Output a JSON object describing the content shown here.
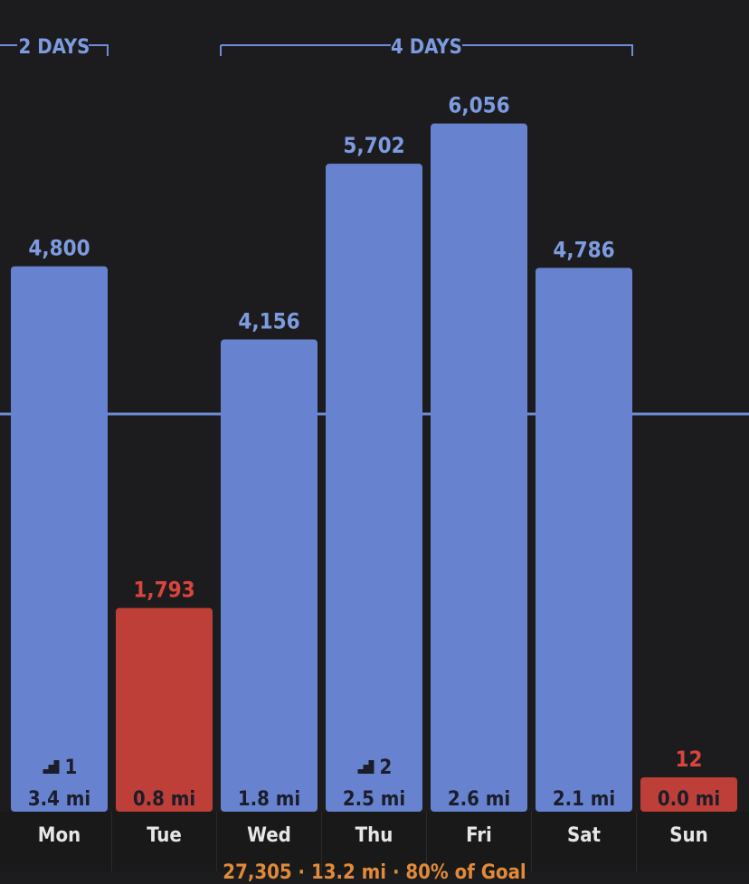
{
  "colors": {
    "background": "#1c1c1e",
    "bar_goal_met": "#6783d0",
    "bar_goal_missed": "#bd3f38",
    "label_goal_met": "#7c9be0",
    "label_goal_missed": "#d7453c",
    "goal_line": "#6f8cd8",
    "inner_text": "#1b1d2a",
    "footer": "#e08a3a"
  },
  "streaks": [
    {
      "label": "2 DAYS",
      "from": 0,
      "to": 0
    },
    {
      "label": "4 DAYS",
      "from": 2,
      "to": 5
    }
  ],
  "days": [
    {
      "day": "Mon",
      "distance": "3.4 mi",
      "flights": "1"
    },
    {
      "day": "Tue",
      "distance": "0.8 mi",
      "flights": ""
    },
    {
      "day": "Wed",
      "distance": "1.8 mi",
      "flights": ""
    },
    {
      "day": "Thu",
      "distance": "2.5 mi",
      "flights": "2"
    },
    {
      "day": "Fri",
      "distance": "2.6 mi",
      "flights": ""
    },
    {
      "day": "Sat",
      "distance": "2.1 mi",
      "flights": ""
    },
    {
      "day": "Sun",
      "distance": "0.0 mi",
      "flights": ""
    }
  ],
  "footer": {
    "summary": "27,305 · 13.2 mi · 80% of Goal"
  },
  "chart_data": {
    "type": "bar",
    "categories": [
      "Mon",
      "Tue",
      "Wed",
      "Thu",
      "Fri",
      "Sat",
      "Sun"
    ],
    "values": [
      4800,
      1793,
      4156,
      5702,
      6056,
      4786,
      12
    ],
    "value_labels": [
      "4,800",
      "1,793",
      "4,156",
      "5,702",
      "6,056",
      "4,786",
      "12"
    ],
    "goal_met": [
      true,
      false,
      true,
      true,
      true,
      true,
      false
    ],
    "goal": 3500,
    "ylim": [
      0,
      6300
    ],
    "grid": false,
    "legend": "none"
  }
}
